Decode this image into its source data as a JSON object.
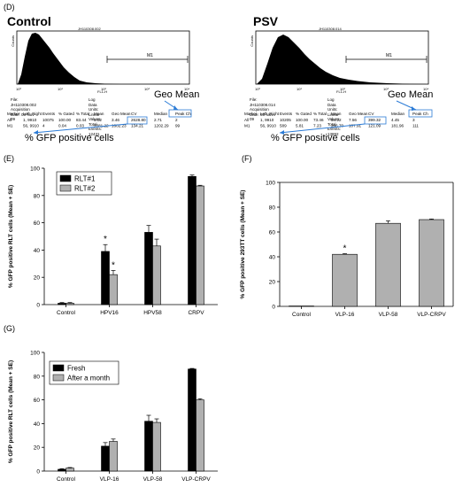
{
  "panel_d": {
    "label": "(D)",
    "annotation_geo_mean": "Geo Mean",
    "annotation_gfp": "% GFP positive cells",
    "histograms": [
      {
        "title": "Control",
        "file_header": "JH110308.002",
        "y_axis_label": "Counts",
        "x_axis_label": "FL1-H",
        "x_ticks": [
          "10⁰",
          "10¹",
          "10²",
          "10³",
          "10⁴"
        ],
        "gate_label": "M1",
        "file_line": "File: JH110308.002",
        "acq_date": "Acquisition Date: 03-Nov-09",
        "log_units": "Log Data Units: Linear Values",
        "total_events": "Total Events: 12431",
        "stats_headers": [
          "Marker",
          "Left, Right",
          "Events",
          "% Gated",
          "% Total",
          "Mean",
          "Geo Mean",
          "CV",
          "Median",
          "Peak Ch"
        ],
        "stats_rows": [
          [
            "All",
            "1, 9910",
            "10075",
            "100.00",
            "83.44",
            "5.02",
            "3.46",
            "2628.80",
            "2.71",
            "2"
          ],
          [
            "M1",
            "56, 9910",
            "4",
            "0.04",
            "0.03",
            "3381.22",
            "1602.23",
            "134.21",
            "1202.29",
            "99"
          ]
        ]
      },
      {
        "title": "PSV",
        "file_header": "JH110308.014",
        "y_axis_label": "Counts",
        "x_axis_label": "FL1-H",
        "x_ticks": [
          "10⁰",
          "10¹",
          "10²",
          "10³",
          "10⁴"
        ],
        "gate_label": "M1",
        "file_line": "File: JH110308.014",
        "acq_date": "Acquisition Date: 03-Nov-09",
        "log_units": "Log Data Units: Linear Values",
        "total_events": "Total Events: 13892",
        "stats_headers": [
          "Marker",
          "Left, Right",
          "Events",
          "% Gated",
          "% Total",
          "Mean",
          "Geo Mean",
          "CV",
          "Median",
          "Peak Ch"
        ],
        "stats_rows": [
          [
            "All",
            "1, 9910",
            "10205",
            "100.00",
            "73.46",
            "34.22",
            "7.56",
            "399.32",
            "4.45",
            "3"
          ],
          [
            "M1",
            "56, 9910",
            "589",
            "5.81",
            "7.23",
            "266.70",
            "107.91",
            "121.09",
            "181.96",
            "111"
          ]
        ]
      }
    ]
  },
  "chart_data": [
    {
      "panel": "(E)",
      "type": "bar",
      "ylabel": "% GFP positive RLT cells (Mean + SE)",
      "ylim": [
        0,
        100
      ],
      "yticks": [
        "0",
        "20",
        "40",
        "60",
        "80",
        "100"
      ],
      "categories": [
        "Control",
        "HPV16",
        "HPV58",
        "CRPV"
      ],
      "series": [
        {
          "name": "RLT#1",
          "color": "#000000",
          "values": [
            1,
            39,
            53,
            94
          ],
          "errors": [
            0.5,
            5,
            5,
            1
          ]
        },
        {
          "name": "RLT#2",
          "color": "#b0b0b0",
          "values": [
            1,
            22,
            43,
            87
          ],
          "errors": [
            0.5,
            3,
            5,
            0.5
          ]
        }
      ],
      "annotations": [
        {
          "category": "HPV16",
          "series": "RLT#1",
          "text": "*"
        },
        {
          "category": "HPV16",
          "series": "RLT#2",
          "text": "*"
        }
      ],
      "legend": "top-left"
    },
    {
      "panel": "(F)",
      "type": "bar",
      "ylabel": "% GFP positive 293TT cells (Mean + SE)",
      "ylim": [
        0,
        100
      ],
      "yticks": [
        "0",
        "20",
        "40",
        "60",
        "80",
        "100"
      ],
      "categories": [
        "Control",
        "VLP-16",
        "VLP-58",
        "VLP-CRPV"
      ],
      "series": [
        {
          "color": "#b0b0b0",
          "values": [
            0.3,
            42,
            67,
            70
          ],
          "errors": [
            0,
            0.5,
            2,
            0.5
          ]
        }
      ],
      "annotations": [
        {
          "category": "VLP-16",
          "text": "*"
        }
      ]
    },
    {
      "panel": "(G)",
      "type": "bar",
      "ylabel": "% GFP positive RLT cells (Mean + SE)",
      "ylim": [
        0,
        100
      ],
      "yticks": [
        "0",
        "20",
        "40",
        "60",
        "80",
        "100"
      ],
      "categories": [
        "Control",
        "VLP-16",
        "VLP-58",
        "VLP-CRPV"
      ],
      "series": [
        {
          "name": "Fresh",
          "color": "#000000",
          "values": [
            1.5,
            21,
            42,
            86
          ],
          "errors": [
            0.5,
            3,
            5,
            0.5
          ]
        },
        {
          "name": "After a month",
          "color": "#b0b0b0",
          "values": [
            2.5,
            25,
            41,
            60
          ],
          "errors": [
            0.5,
            2,
            3,
            1
          ]
        }
      ],
      "legend": "top-left"
    }
  ]
}
